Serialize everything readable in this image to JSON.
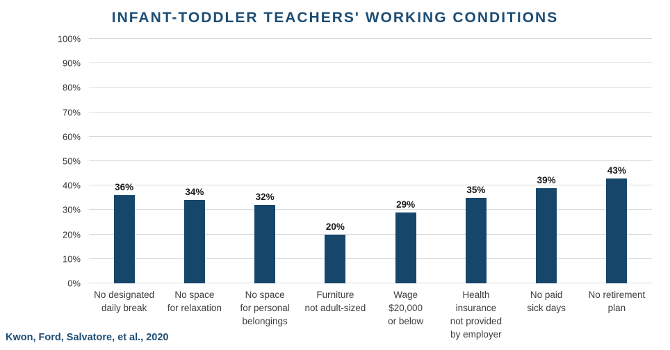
{
  "title": "INFANT-TODDLER TEACHERS' WORKING CONDITIONS",
  "citation": "Kwon, Ford, Salvatore, et al., 2020",
  "colors": {
    "bar": "#17466B",
    "title": "#1D4D74",
    "gridline": "#D9D9D9",
    "value_label": "#1A1A1A"
  },
  "chart_data": {
    "type": "bar",
    "title": "INFANT-TODDLER TEACHERS' WORKING CONDITIONS",
    "categories": [
      "No designated\ndaily break",
      "No space\nfor relaxation",
      "No space\nfor personal\nbelongings",
      "Furniture\nnot adult-sized",
      "Wage\n$20,000\nor below",
      "Health insurance\nnot provided\nby employer",
      "No paid\nsick days",
      "No retirement\nplan"
    ],
    "values": [
      36,
      34,
      32,
      20,
      29,
      35,
      39,
      43
    ],
    "value_labels": [
      "36%",
      "34%",
      "32%",
      "20%",
      "29%",
      "35%",
      "39%",
      "43%"
    ],
    "xlabel": "",
    "ylabel": "",
    "ylim": [
      0,
      100
    ],
    "ytick_step": 10,
    "ytick_labels": [
      "0%",
      "10%",
      "20%",
      "30%",
      "40%",
      "50%",
      "60%",
      "70%",
      "80%",
      "90%",
      "100%"
    ],
    "grid": true,
    "legend": false,
    "annotation": "Kwon, Ford, Salvatore, et al., 2020"
  }
}
